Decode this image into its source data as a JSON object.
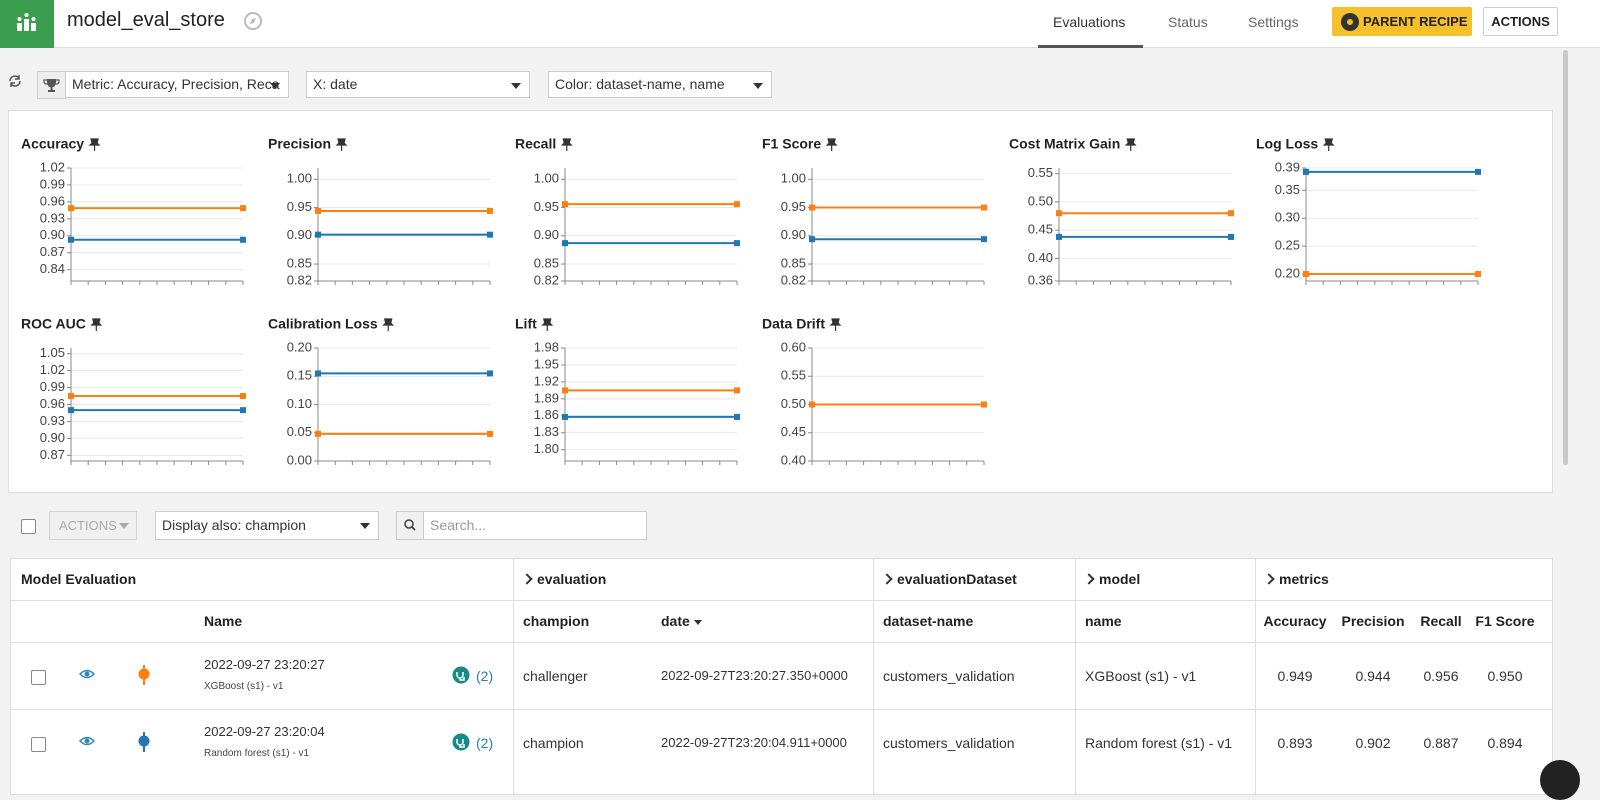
{
  "header": {
    "title": "model_eval_store",
    "tabs": [
      "Evaluations",
      "Status",
      "Settings"
    ],
    "parent_recipe": "PARENT RECIPE",
    "actions": "ACTIONS"
  },
  "toolbar": {
    "metric_label": "Metric:",
    "metric_value": "Accuracy, Precision, Reca",
    "x_label": "X:",
    "x_value": "date",
    "color_label": "Color:",
    "color_value": "dataset-name, name"
  },
  "chart_data": [
    {
      "type": "line",
      "title": "Accuracy",
      "categories": [
        null,
        null
      ],
      "series": [
        {
          "color": "#1f77b4",
          "values": [
            0.893,
            0.893
          ]
        },
        {
          "color": "#ff7f0e",
          "values": [
            0.949,
            0.949
          ]
        }
      ],
      "ylim": [
        0.82,
        1.02
      ],
      "yticks": [
        0.84,
        0.87,
        {
          "value": 0.9,
          "label": "0.90"
        },
        0.93,
        0.96,
        0.99,
        1.02
      ],
      "grid": true
    },
    {
      "type": "line",
      "title": "Precision",
      "categories": [
        null,
        null
      ],
      "series": [
        {
          "color": "#1f77b4",
          "values": [
            0.902,
            0.902
          ]
        },
        {
          "color": "#ff7f0e",
          "values": [
            0.944,
            0.944
          ]
        }
      ],
      "ylim": [
        0.82,
        1.02
      ],
      "yticks": [
        0.82,
        0.85,
        {
          "value": 0.9,
          "label": "0.90"
        },
        0.95,
        {
          "value": 1,
          "label": "1.00"
        }
      ],
      "grid": true
    },
    {
      "type": "line",
      "title": "Recall",
      "categories": [
        null,
        null
      ],
      "series": [
        {
          "color": "#1f77b4",
          "values": [
            0.887,
            0.887
          ]
        },
        {
          "color": "#ff7f0e",
          "values": [
            0.956,
            0.956
          ]
        }
      ],
      "ylim": [
        0.82,
        1.02
      ],
      "yticks": [
        0.82,
        0.85,
        {
          "value": 0.9,
          "label": "0.90"
        },
        0.95,
        {
          "value": 1,
          "label": "1.00"
        }
      ],
      "grid": true
    },
    {
      "type": "line",
      "title": "F1 Score",
      "categories": [
        null,
        null
      ],
      "series": [
        {
          "color": "#1f77b4",
          "values": [
            0.894,
            0.894
          ]
        },
        {
          "color": "#ff7f0e",
          "values": [
            0.95,
            0.95
          ]
        }
      ],
      "ylim": [
        0.82,
        1.02
      ],
      "yticks": [
        0.82,
        0.85,
        {
          "value": 0.9,
          "label": "0.90"
        },
        0.95,
        {
          "value": 1,
          "label": "1.00"
        }
      ],
      "grid": true
    },
    {
      "type": "line",
      "title": "Cost Matrix Gain",
      "categories": [
        null,
        null
      ],
      "series": [
        {
          "color": "#1f77b4",
          "values": [
            0.438,
            0.438
          ]
        },
        {
          "color": "#ff7f0e",
          "values": [
            0.48,
            0.48
          ]
        }
      ],
      "ylim": [
        0.36,
        0.56
      ],
      "yticks": [
        0.36,
        {
          "value": 0.4,
          "label": "0.40"
        },
        0.45,
        {
          "value": 0.5,
          "label": "0.50"
        },
        0.55
      ],
      "grid": true
    },
    {
      "type": "line",
      "title": "Log Loss",
      "categories": [
        null,
        null
      ],
      "series": [
        {
          "color": "#1f77b4",
          "values": [
            0.383,
            0.383
          ]
        },
        {
          "color": "#ff7f0e",
          "values": [
            0.2,
            0.2
          ]
        }
      ],
      "ylim": [
        0.1875,
        0.39
      ],
      "yticks": [
        {
          "value": 0.2,
          "label": "0.20"
        },
        0.25,
        {
          "value": 0.3,
          "label": "0.30"
        },
        0.35,
        0.39
      ],
      "grid": true
    },
    {
      "type": "line",
      "title": "ROC AUC",
      "categories": [
        null,
        null
      ],
      "series": [
        {
          "color": "#1f77b4",
          "values": [
            0.95,
            0.95
          ]
        },
        {
          "color": "#ff7f0e",
          "values": [
            0.975,
            0.975
          ]
        }
      ],
      "ylim": [
        0.86,
        1.06
      ],
      "yticks": [
        0.87,
        {
          "value": 0.9,
          "label": "0.90"
        },
        0.93,
        0.96,
        0.99,
        1.02,
        1.05
      ],
      "grid": true
    },
    {
      "type": "line",
      "title": "Calibration Loss",
      "categories": [
        null,
        null
      ],
      "series": [
        {
          "color": "#1f77b4",
          "values": [
            0.155,
            0.155
          ]
        },
        {
          "color": "#ff7f0e",
          "values": [
            0.048,
            0.048
          ]
        }
      ],
      "ylim": [
        0,
        0.2
      ],
      "yticks": [
        {
          "value": 0,
          "label": "0.00"
        },
        0.05,
        {
          "value": 0.1,
          "label": "0.10"
        },
        0.15,
        {
          "value": 0.2,
          "label": "0.20"
        }
      ],
      "grid": true
    },
    {
      "type": "line",
      "title": "Lift",
      "categories": [
        null,
        null
      ],
      "series": [
        {
          "color": "#1f77b4",
          "values": [
            1.858,
            1.858
          ]
        },
        {
          "color": "#ff7f0e",
          "values": [
            1.905,
            1.905
          ]
        }
      ],
      "ylim": [
        1.78,
        1.98
      ],
      "yticks": [
        {
          "value": 1.8,
          "label": "1.80"
        },
        1.83,
        1.86,
        1.89,
        1.92,
        1.95,
        1.98
      ],
      "grid": true
    },
    {
      "type": "line",
      "title": "Data Drift",
      "categories": [
        null,
        null
      ],
      "series": [
        {
          "color": "#ff7f0e",
          "values": [
            0.5,
            0.5
          ]
        }
      ],
      "ylim": [
        0.4,
        0.6
      ],
      "yticks": [
        {
          "value": 0.4,
          "label": "0.40"
        },
        0.45,
        {
          "value": 0.5,
          "label": "0.50"
        },
        0.55,
        {
          "value": 0.6,
          "label": "0.60"
        }
      ],
      "grid": true
    }
  ],
  "list_toolbar": {
    "actions": "ACTIONS",
    "display_label": "Display also:",
    "display_value": "champion",
    "search_placeholder": "Search..."
  },
  "table": {
    "groups": [
      "Model Evaluation",
      "evaluation",
      "evaluationDataset",
      "model",
      "metrics"
    ],
    "columns": [
      "Name",
      "champion",
      "date",
      "dataset-name",
      "name",
      "Accuracy",
      "Precision",
      "Recall",
      "F1 Score"
    ],
    "rows": [
      {
        "name": "2022-09-27 23:20:27",
        "model_sub": "XGBoost (s1) - v1",
        "count": "(2)",
        "champion": "challenger",
        "date": "2022-09-27T23:20:27.350+0000",
        "dataset": "customers_validation",
        "model": "XGBoost (s1) - v1",
        "metrics": [
          "0.949",
          "0.944",
          "0.956",
          "0.950"
        ]
      },
      {
        "name": "2022-09-27 23:20:04",
        "model_sub": "Random forest (s1) - v1",
        "count": "(2)",
        "champion": "champion",
        "date": "2022-09-27T23:20:04.911+0000",
        "dataset": "customers_validation",
        "model": "Random forest (s1) - v1",
        "metrics": [
          "0.893",
          "0.902",
          "0.887",
          "0.894"
        ]
      }
    ]
  }
}
